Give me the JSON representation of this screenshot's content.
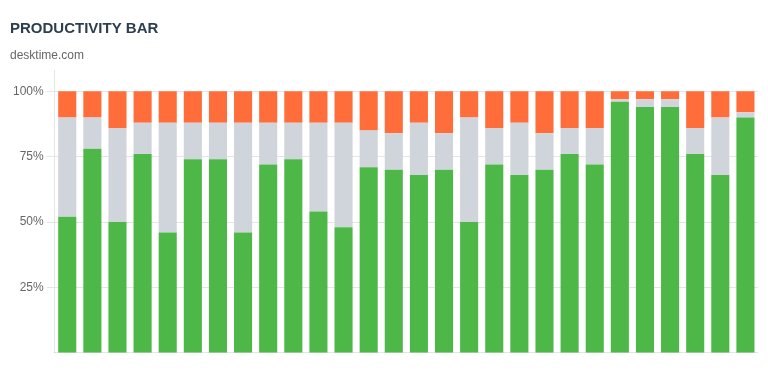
{
  "chart_data": {
    "type": "bar",
    "title": "PRODUCTIVITY BAR",
    "subtitle": "desktime.com",
    "stacked": true,
    "categories": [
      null,
      null,
      null,
      null,
      null,
      null,
      null,
      null,
      null,
      null,
      null,
      null,
      null,
      null,
      null,
      null,
      null,
      null,
      null,
      null,
      null,
      null,
      null,
      null,
      null,
      null,
      null,
      null
    ],
    "series": [
      {
        "color": "#4db848",
        "values": [
          0.52,
          0.78,
          0.5,
          0.76,
          0.46,
          0.74,
          0.74,
          0.46,
          0.72,
          0.74,
          0.54,
          0.48,
          0.71,
          0.7,
          0.68,
          0.7,
          0.5,
          0.72,
          0.68,
          0.7,
          0.76,
          0.72,
          0.96,
          0.94,
          0.94,
          0.76,
          0.68,
          0.9
        ]
      },
      {
        "color": "#d0d4db",
        "values": [
          0.38,
          0.12,
          0.36,
          0.12,
          0.42,
          0.14,
          0.14,
          0.42,
          0.16,
          0.14,
          0.34,
          0.4,
          0.14,
          0.14,
          0.2,
          0.14,
          0.4,
          0.14,
          0.2,
          0.14,
          0.1,
          0.14,
          0.01,
          0.03,
          0.03,
          0.1,
          0.22,
          0.02
        ]
      },
      {
        "color": "#ff6d3a",
        "values": [
          0.1,
          0.1,
          0.14,
          0.12,
          0.12,
          0.12,
          0.12,
          0.12,
          0.12,
          0.12,
          0.12,
          0.12,
          0.15,
          0.16,
          0.12,
          0.16,
          0.1,
          0.14,
          0.12,
          0.16,
          0.14,
          0.14,
          0.03,
          0.03,
          0.03,
          0.14,
          0.1,
          0.08
        ]
      }
    ],
    "ylim": [
      0,
      1.08
    ],
    "yticks": [
      {
        "value": 0.25,
        "label": "25%"
      },
      {
        "value": 0.5,
        "label": "50%"
      },
      {
        "value": 0.75,
        "label": "75%"
      },
      {
        "value": 1.0,
        "label": "100%"
      }
    ],
    "grid": true,
    "tick_labels": "y"
  }
}
